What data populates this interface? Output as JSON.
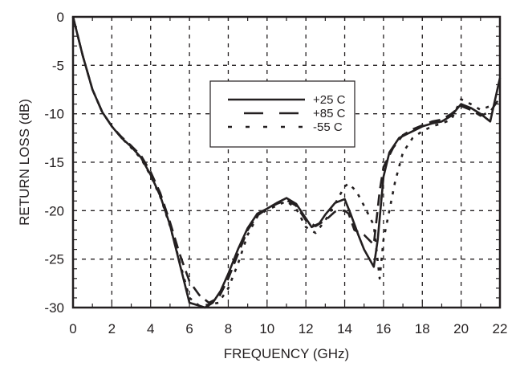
{
  "chart_data": {
    "type": "line",
    "title": "",
    "xlabel": "FREQUENCY (GHz)",
    "ylabel": "RETURN LOSS (dB)",
    "xlim": [
      0,
      22
    ],
    "ylim": [
      -30,
      0
    ],
    "x_ticks": [
      0,
      2,
      4,
      6,
      8,
      10,
      12,
      14,
      16,
      18,
      20,
      22
    ],
    "y_ticks": [
      0,
      -5,
      -10,
      -15,
      -20,
      -25,
      -30
    ],
    "x_tick_labels": [
      "0",
      "2",
      "4",
      "6",
      "8",
      "10",
      "12",
      "14",
      "16",
      "18",
      "20",
      "22"
    ],
    "y_tick_labels": [
      "0",
      "-5",
      "-10",
      "-15",
      "-20",
      "-25",
      "-30"
    ],
    "grid": true,
    "legend": {
      "position": "upper-center",
      "entries": [
        {
          "label": "+25 C",
          "style": "solid"
        },
        {
          "label": "+85 C",
          "style": "long-dash"
        },
        {
          "label": "-55 C",
          "style": "dotted"
        }
      ]
    },
    "series": [
      {
        "name": "+25 C",
        "style": "solid",
        "x": [
          0,
          0.5,
          1,
          1.5,
          2,
          2.5,
          3,
          3.5,
          4,
          4.5,
          5,
          5.5,
          6,
          6.5,
          6.8,
          7.2,
          7.6,
          8,
          8.5,
          9,
          9.5,
          10,
          10.5,
          11,
          11.5,
          12,
          12.3,
          12.7,
          13,
          13.5,
          14,
          14.3,
          14.7,
          15,
          15.5,
          15.7,
          16,
          16.3,
          16.8,
          17.5,
          18,
          18.5,
          19,
          19.5,
          20,
          20.5,
          21,
          21.5,
          22
        ],
        "values": [
          0,
          -4,
          -7.5,
          -9.8,
          -11.3,
          -12.5,
          -13.4,
          -14.5,
          -16.3,
          -18.5,
          -21.5,
          -25.5,
          -29.5,
          -29.8,
          -30,
          -29.5,
          -28.3,
          -26.5,
          -24,
          -21.8,
          -20.3,
          -19.8,
          -19.2,
          -18.7,
          -19.3,
          -20.8,
          -21.7,
          -21.3,
          -20.4,
          -19.2,
          -18.8,
          -20.3,
          -22.5,
          -24,
          -25.8,
          -23,
          -16.5,
          -14,
          -12.5,
          -11.8,
          -11.3,
          -11,
          -10.8,
          -10.2,
          -9,
          -9.4,
          -10,
          -10.8,
          -6.3
        ]
      },
      {
        "name": "+85 C",
        "style": "long-dash",
        "x": [
          0,
          0.5,
          1,
          1.5,
          2,
          2.5,
          3,
          3.5,
          4,
          4.5,
          5,
          5.5,
          6,
          6.5,
          7,
          7.5,
          8,
          8.5,
          9,
          9.5,
          10,
          10.5,
          11,
          11.5,
          12,
          12.5,
          13,
          13.5,
          14,
          14.2,
          14.5,
          15,
          15.5,
          15.8,
          16,
          16.5,
          17,
          17.5,
          18,
          18.5,
          19,
          19.5,
          20,
          20.5,
          21,
          21.5,
          22
        ],
        "values": [
          0,
          -4,
          -7.5,
          -9.8,
          -11.3,
          -12.4,
          -13.3,
          -14.3,
          -16,
          -18.2,
          -21.2,
          -24.5,
          -27.3,
          -28.7,
          -29.5,
          -29,
          -27,
          -24.5,
          -22,
          -20.5,
          -19.8,
          -19.3,
          -18.9,
          -19.5,
          -21,
          -21.6,
          -21,
          -20.1,
          -20,
          -20.3,
          -22,
          -22.5,
          -23.5,
          -18,
          -15.5,
          -13.5,
          -12.2,
          -11.6,
          -11.2,
          -10.8,
          -10.6,
          -10,
          -9.2,
          -9.6,
          -10.2,
          -9.8,
          -8.3
        ]
      },
      {
        "name": "-55 C",
        "style": "dotted",
        "x": [
          0,
          0.5,
          1,
          1.5,
          2,
          2.5,
          3,
          3.5,
          4,
          4.5,
          5,
          5.5,
          6,
          6.5,
          7,
          7.5,
          8,
          8.5,
          9,
          9.5,
          10,
          10.5,
          11,
          11.5,
          12,
          12.5,
          13,
          13.5,
          14,
          14.2,
          14.6,
          15,
          15.5,
          15.8,
          16,
          16.3,
          16.6,
          17,
          17.5,
          18,
          18.5,
          19,
          19.5,
          20,
          20.5,
          21,
          21.5,
          22
        ],
        "values": [
          0,
          -4,
          -7.5,
          -9.8,
          -11.3,
          -12.5,
          -13.5,
          -14.6,
          -16.4,
          -18.6,
          -21.6,
          -25.3,
          -29,
          -29.8,
          -29.7,
          -29.5,
          -28,
          -25.5,
          -22.5,
          -20.6,
          -19.9,
          -19.5,
          -19,
          -19.8,
          -21.7,
          -22.3,
          -21,
          -19.3,
          -17.5,
          -17.2,
          -18,
          -19.5,
          -21.5,
          -27,
          -23,
          -20,
          -17,
          -14,
          -12.5,
          -11.8,
          -11.3,
          -11,
          -10.6,
          -8.5,
          -9,
          -9.6,
          -9.2,
          -8.7
        ]
      }
    ]
  }
}
